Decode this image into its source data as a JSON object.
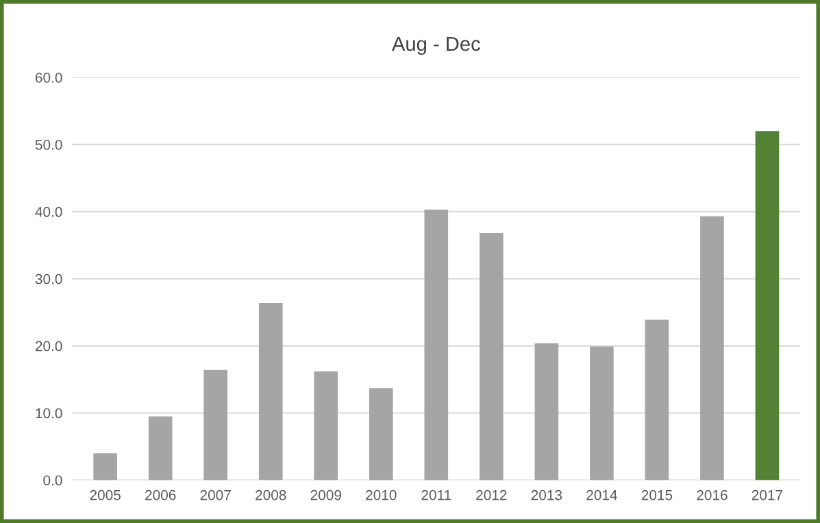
{
  "chart_data": {
    "type": "bar",
    "title": "Aug - Dec",
    "categories": [
      "2005",
      "2006",
      "2007",
      "2008",
      "2009",
      "2010",
      "2011",
      "2012",
      "2013",
      "2014",
      "2015",
      "2016",
      "2017"
    ],
    "values": [
      4.0,
      9.5,
      16.4,
      26.4,
      16.2,
      13.7,
      40.3,
      36.8,
      20.4,
      19.9,
      23.9,
      39.3,
      52.0
    ],
    "colors": [
      "#a5a5a5",
      "#a5a5a5",
      "#a5a5a5",
      "#a5a5a5",
      "#a5a5a5",
      "#a5a5a5",
      "#a5a5a5",
      "#a5a5a5",
      "#a5a5a5",
      "#a5a5a5",
      "#a5a5a5",
      "#a5a5a5",
      "#548235"
    ],
    "ylim": [
      0,
      60
    ],
    "yticks": [
      {
        "value": 0,
        "label": "0.0"
      },
      {
        "value": 10,
        "label": "10.0"
      },
      {
        "value": 20,
        "label": "20.0"
      },
      {
        "value": 30,
        "label": "30.0"
      },
      {
        "value": 40,
        "label": "40.0"
      },
      {
        "value": 50,
        "label": "50.0"
      },
      {
        "value": 60,
        "label": "60.0"
      }
    ],
    "grid": "y",
    "legend": false
  }
}
